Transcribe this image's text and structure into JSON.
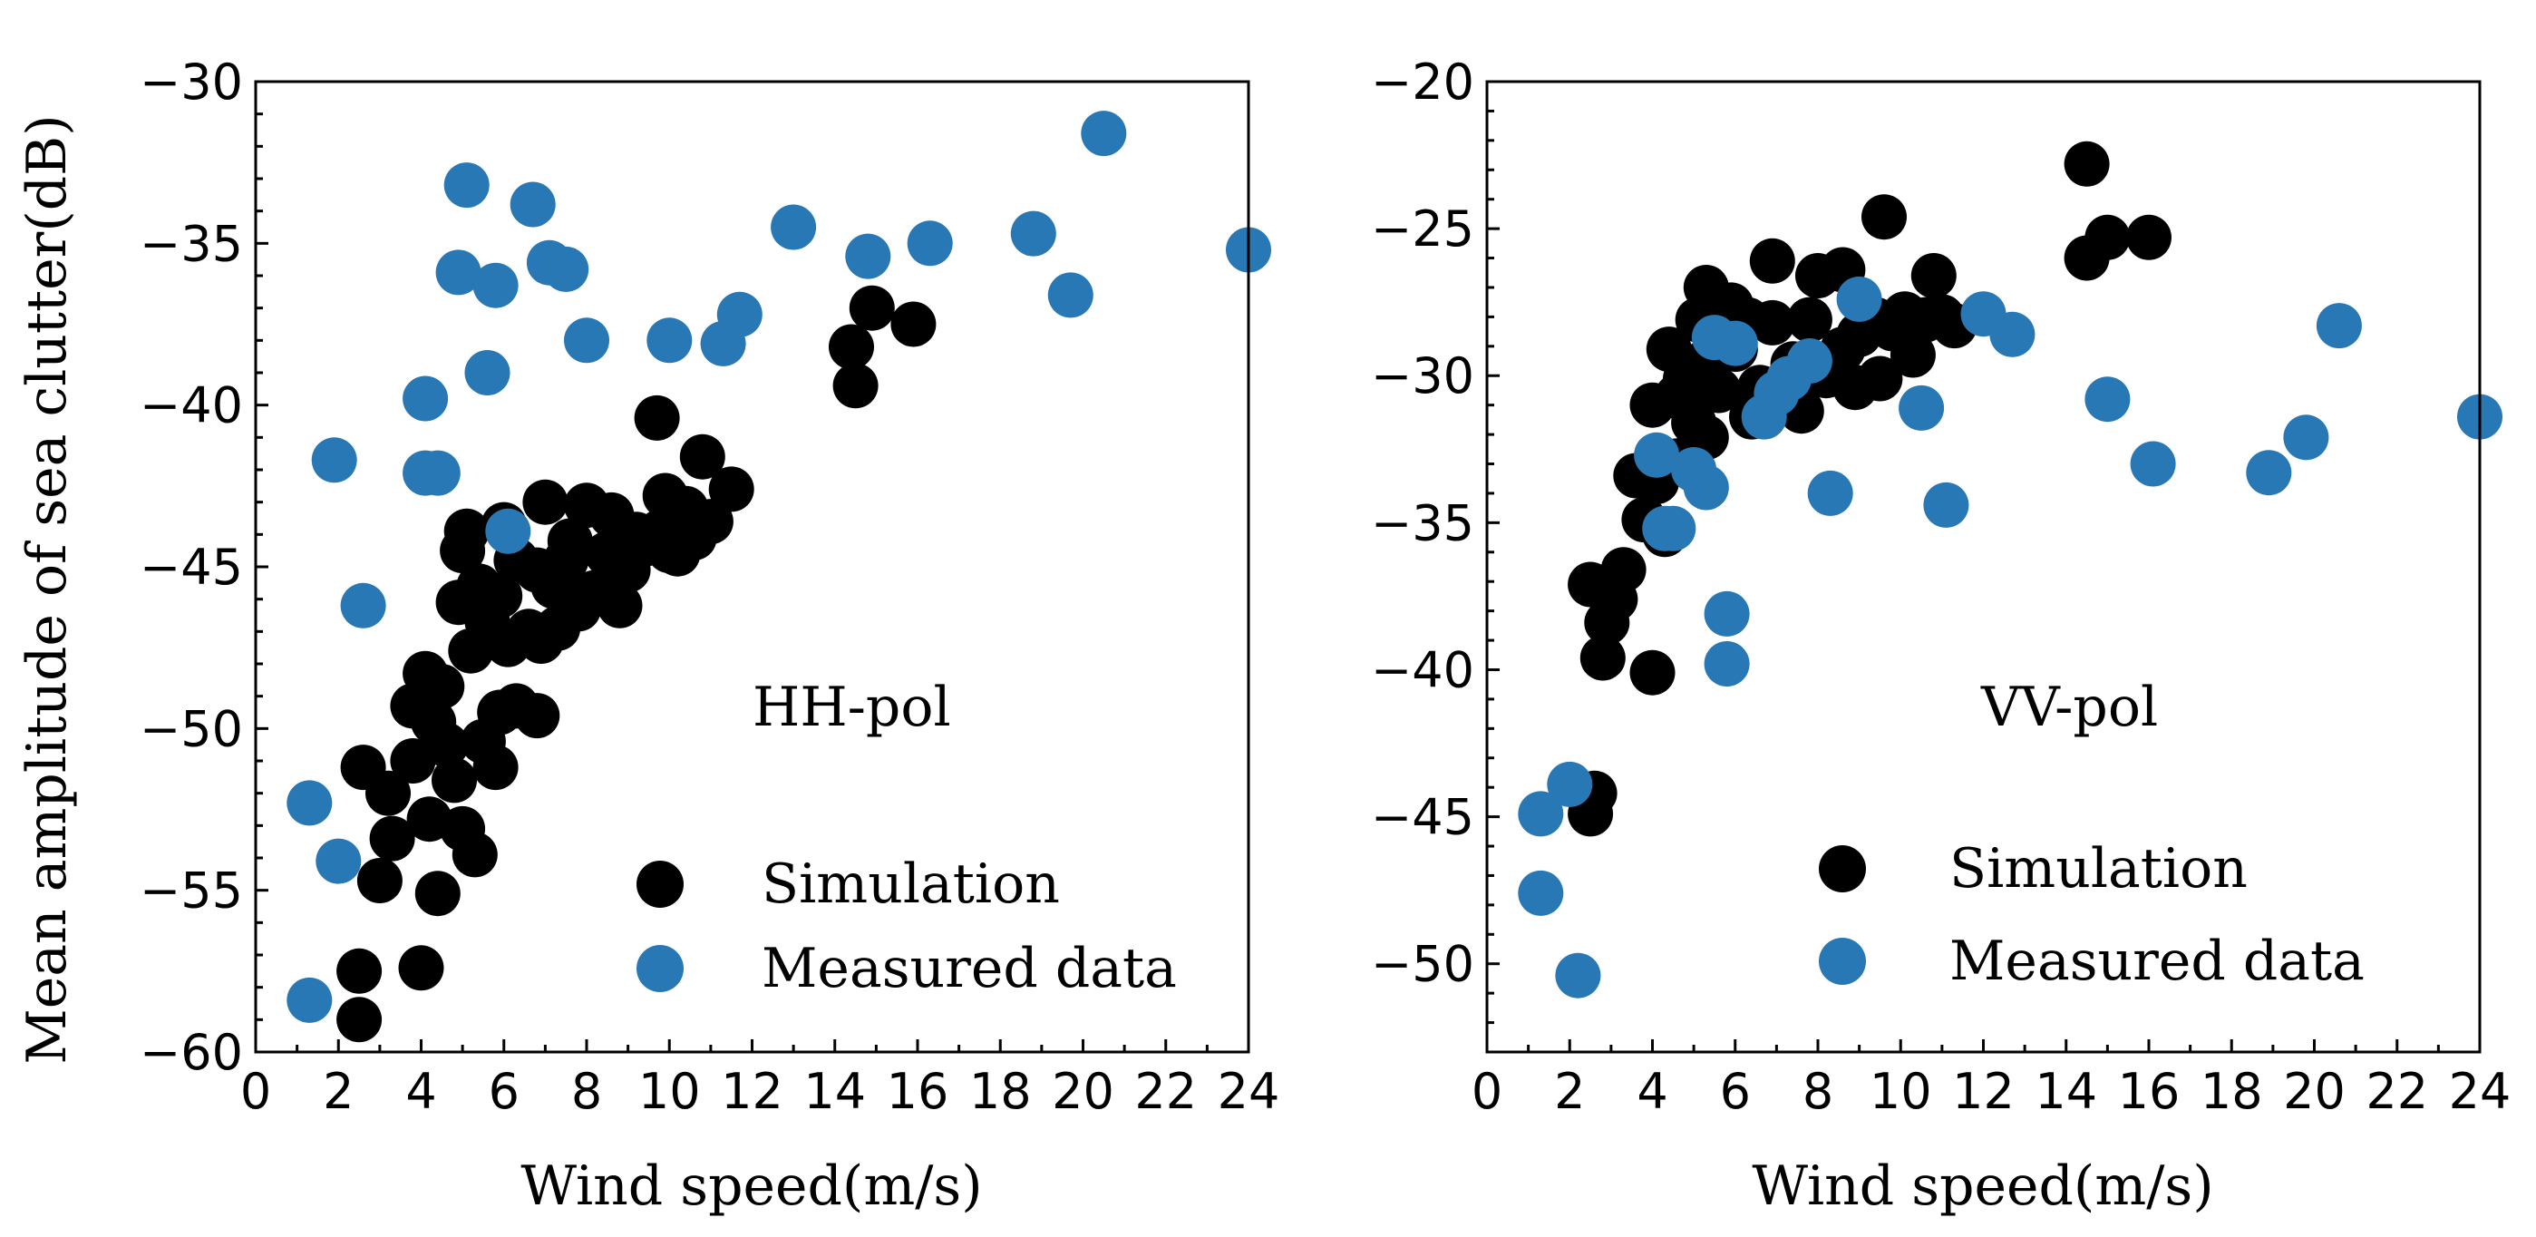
{
  "chart_data": [
    {
      "type": "scatter",
      "panel_label": "HH-pol",
      "xlabel": "Wind speed(m/s)",
      "ylabel": "Mean amplitude of sea clutter(dB)",
      "xlim": [
        0,
        24
      ],
      "ylim": [
        -60,
        -30
      ],
      "xticks": [
        0,
        2,
        4,
        6,
        8,
        10,
        12,
        14,
        16,
        18,
        20,
        22,
        24
      ],
      "yticks": [
        -60,
        -55,
        -50,
        -45,
        -40,
        -35,
        -30
      ],
      "legend_position": "bottom-right",
      "series": [
        {
          "name": "Simulation",
          "color": "#000000",
          "points": [
            [
              2.5,
              -59.0
            ],
            [
              2.5,
              -57.5
            ],
            [
              4.0,
              -57.4
            ],
            [
              4.4,
              -55.1
            ],
            [
              3.0,
              -54.7
            ],
            [
              3.3,
              -53.4
            ],
            [
              5.3,
              -53.9
            ],
            [
              3.2,
              -52.0
            ],
            [
              4.2,
              -52.8
            ],
            [
              4.8,
              -51.6
            ],
            [
              5.0,
              -53.1
            ],
            [
              2.6,
              -51.2
            ],
            [
              3.8,
              -51.0
            ],
            [
              4.6,
              -50.5
            ],
            [
              5.5,
              -50.4
            ],
            [
              5.8,
              -51.2
            ],
            [
              3.8,
              -49.3
            ],
            [
              4.3,
              -49.8
            ],
            [
              6.3,
              -49.3
            ],
            [
              6.8,
              -49.6
            ],
            [
              5.9,
              -49.5
            ],
            [
              4.1,
              -48.3
            ],
            [
              4.5,
              -48.7
            ],
            [
              5.2,
              -47.6
            ],
            [
              4.9,
              -46.1
            ],
            [
              5.6,
              -46.7
            ],
            [
              6.1,
              -47.4
            ],
            [
              6.6,
              -47.0
            ],
            [
              6.9,
              -47.3
            ],
            [
              7.3,
              -46.9
            ],
            [
              7.8,
              -46.3
            ],
            [
              8.2,
              -45.8
            ],
            [
              8.8,
              -46.2
            ],
            [
              5.0,
              -44.5
            ],
            [
              5.4,
              -45.6
            ],
            [
              5.9,
              -45.9
            ],
            [
              6.3,
              -44.8
            ],
            [
              6.8,
              -45.1
            ],
            [
              7.2,
              -45.6
            ],
            [
              7.6,
              -44.2
            ],
            [
              8.0,
              -43.1
            ],
            [
              8.5,
              -44.6
            ],
            [
              9.0,
              -45.1
            ],
            [
              9.4,
              -44.3
            ],
            [
              9.8,
              -43.9
            ],
            [
              10.2,
              -44.6
            ],
            [
              10.6,
              -44.1
            ],
            [
              11.0,
              -43.6
            ],
            [
              11.5,
              -42.6
            ],
            [
              10.8,
              -41.6
            ],
            [
              9.7,
              -40.4
            ],
            [
              9.9,
              -42.8
            ],
            [
              10.4,
              -43.2
            ],
            [
              7.0,
              -43.0
            ],
            [
              8.6,
              -43.4
            ],
            [
              5.1,
              -43.9
            ],
            [
              6.0,
              -43.7
            ],
            [
              7.5,
              -44.8
            ],
            [
              9.2,
              -44.0
            ],
            [
              10.0,
              -44.5
            ],
            [
              14.4,
              -38.2
            ],
            [
              14.5,
              -39.4
            ],
            [
              14.9,
              -37.0
            ],
            [
              15.9,
              -37.5
            ]
          ]
        },
        {
          "name": "Measured data",
          "color": "#2878b5",
          "points": [
            [
              1.3,
              -58.4
            ],
            [
              1.3,
              -52.3
            ],
            [
              2.0,
              -54.1
            ],
            [
              1.9,
              -41.7
            ],
            [
              2.6,
              -46.2
            ],
            [
              4.1,
              -42.1
            ],
            [
              4.4,
              -42.1
            ],
            [
              4.1,
              -39.8
            ],
            [
              4.9,
              -35.9
            ],
            [
              5.1,
              -33.2
            ],
            [
              5.6,
              -39.0
            ],
            [
              5.8,
              -36.3
            ],
            [
              6.1,
              -43.9
            ],
            [
              6.7,
              -33.8
            ],
            [
              7.1,
              -35.6
            ],
            [
              7.5,
              -35.8
            ],
            [
              8.0,
              -38.0
            ],
            [
              10.0,
              -38.0
            ],
            [
              11.3,
              -38.1
            ],
            [
              11.7,
              -37.2
            ],
            [
              13.0,
              -34.5
            ],
            [
              14.8,
              -35.4
            ],
            [
              16.3,
              -35.0
            ],
            [
              18.8,
              -34.7
            ],
            [
              19.7,
              -36.6
            ],
            [
              20.5,
              -31.6
            ],
            [
              24.0,
              -35.2
            ]
          ]
        }
      ]
    },
    {
      "type": "scatter",
      "panel_label": "VV-pol",
      "xlabel": "Wind speed(m/s)",
      "ylabel": "",
      "xlim": [
        0,
        24
      ],
      "ylim": [
        -53,
        -20
      ],
      "xticks": [
        0,
        2,
        4,
        6,
        8,
        10,
        12,
        14,
        16,
        18,
        20,
        22,
        24
      ],
      "yticks": [
        -50,
        -45,
        -40,
        -35,
        -30,
        -25,
        -20
      ],
      "legend_position": "bottom-right",
      "series": [
        {
          "name": "Simulation",
          "color": "#000000",
          "points": [
            [
              2.5,
              -44.9
            ],
            [
              2.6,
              -44.2
            ],
            [
              2.8,
              -39.6
            ],
            [
              4.0,
              -40.1
            ],
            [
              2.9,
              -38.4
            ],
            [
              3.1,
              -37.6
            ],
            [
              2.5,
              -37.1
            ],
            [
              3.3,
              -36.6
            ],
            [
              3.8,
              -34.9
            ],
            [
              4.3,
              -35.4
            ],
            [
              3.6,
              -33.4
            ],
            [
              4.1,
              -33.6
            ],
            [
              4.6,
              -32.9
            ],
            [
              4.0,
              -31.0
            ],
            [
              4.6,
              -30.7
            ],
            [
              5.0,
              -31.6
            ],
            [
              5.3,
              -32.1
            ],
            [
              4.4,
              -29.1
            ],
            [
              4.8,
              -30.1
            ],
            [
              5.2,
              -29.6
            ],
            [
              5.6,
              -30.5
            ],
            [
              6.0,
              -29.1
            ],
            [
              5.1,
              -28.1
            ],
            [
              5.5,
              -27.5
            ],
            [
              5.9,
              -27.6
            ],
            [
              6.3,
              -28.1
            ],
            [
              5.3,
              -27.0
            ],
            [
              6.6,
              -30.4
            ],
            [
              7.0,
              -30.6
            ],
            [
              6.9,
              -28.2
            ],
            [
              6.9,
              -26.1
            ],
            [
              7.4,
              -29.6
            ],
            [
              7.8,
              -28.1
            ],
            [
              8.0,
              -26.6
            ],
            [
              8.2,
              -30.0
            ],
            [
              8.6,
              -26.4
            ],
            [
              8.6,
              -29.1
            ],
            [
              9.0,
              -28.6
            ],
            [
              9.4,
              -28.1
            ],
            [
              9.8,
              -28.4
            ],
            [
              10.1,
              -27.9
            ],
            [
              10.6,
              -28.1
            ],
            [
              10.8,
              -26.6
            ],
            [
              11.0,
              -28.0
            ],
            [
              11.3,
              -28.3
            ],
            [
              9.6,
              -24.6
            ],
            [
              7.6,
              -31.2
            ],
            [
              8.9,
              -30.4
            ],
            [
              9.5,
              -30.1
            ],
            [
              10.3,
              -29.3
            ],
            [
              7.2,
              -30.9
            ],
            [
              6.4,
              -31.4
            ],
            [
              14.5,
              -22.8
            ],
            [
              14.5,
              -26.0
            ],
            [
              15.0,
              -25.3
            ],
            [
              16.0,
              -25.3
            ]
          ]
        },
        {
          "name": "Measured data",
          "color": "#2878b5",
          "points": [
            [
              1.3,
              -47.6
            ],
            [
              1.3,
              -44.9
            ],
            [
              2.0,
              -43.9
            ],
            [
              2.2,
              -50.4
            ],
            [
              4.1,
              -32.7
            ],
            [
              4.3,
              -35.2
            ],
            [
              4.5,
              -35.2
            ],
            [
              5.0,
              -33.2
            ],
            [
              5.3,
              -33.8
            ],
            [
              5.5,
              -28.7
            ],
            [
              5.8,
              -38.1
            ],
            [
              5.8,
              -39.8
            ],
            [
              6.0,
              -28.9
            ],
            [
              6.7,
              -31.4
            ],
            [
              7.0,
              -30.6
            ],
            [
              7.3,
              -30.1
            ],
            [
              7.8,
              -29.5
            ],
            [
              8.3,
              -34.0
            ],
            [
              9.0,
              -27.4
            ],
            [
              10.5,
              -31.1
            ],
            [
              11.1,
              -34.4
            ],
            [
              12.0,
              -27.9
            ],
            [
              12.7,
              -28.6
            ],
            [
              15.0,
              -30.8
            ],
            [
              16.1,
              -33.0
            ],
            [
              18.9,
              -33.3
            ],
            [
              19.8,
              -32.1
            ],
            [
              20.6,
              -28.3
            ],
            [
              24.0,
              -31.4
            ]
          ]
        }
      ]
    }
  ]
}
